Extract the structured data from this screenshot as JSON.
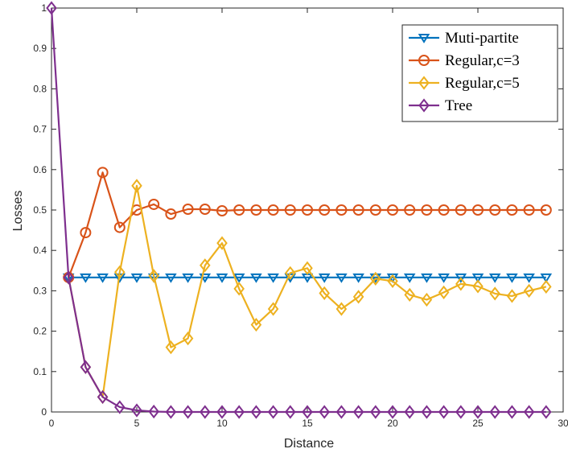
{
  "chart_data": {
    "type": "line",
    "xlabel": "Distance",
    "ylabel": "Losses",
    "xlim": [
      0,
      30
    ],
    "ylim": [
      0,
      1
    ],
    "xticks": [
      "0",
      "5",
      "10",
      "15",
      "20",
      "25",
      "30"
    ],
    "yticks": [
      "0",
      "0.1",
      "0.2",
      "0.3",
      "0.4",
      "0.5",
      "0.6",
      "0.7",
      "0.8",
      "0.9",
      "1"
    ],
    "grid": false,
    "legend_position": "top-right",
    "series": [
      {
        "name": "Muti-partite",
        "color": "#0072BD",
        "marker": "triangle-down",
        "x": [
          1,
          2,
          3,
          4,
          5,
          6,
          7,
          8,
          9,
          10,
          11,
          12,
          13,
          14,
          15,
          16,
          17,
          18,
          19,
          20,
          21,
          22,
          23,
          24,
          25,
          26,
          27,
          28,
          29
        ],
        "y": [
          0.333,
          0.333,
          0.333,
          0.333,
          0.333,
          0.333,
          0.333,
          0.333,
          0.333,
          0.333,
          0.333,
          0.333,
          0.333,
          0.333,
          0.333,
          0.333,
          0.333,
          0.333,
          0.333,
          0.333,
          0.333,
          0.333,
          0.333,
          0.333,
          0.333,
          0.333,
          0.333,
          0.333,
          0.333
        ]
      },
      {
        "name": "Regular,c=3",
        "color": "#D95319",
        "marker": "circle",
        "x": [
          1,
          2,
          3,
          4,
          5,
          6,
          7,
          8,
          9,
          10,
          11,
          12,
          13,
          14,
          15,
          16,
          17,
          18,
          19,
          20,
          21,
          22,
          23,
          24,
          25,
          26,
          27,
          28,
          29
        ],
        "y": [
          0.333,
          0.444,
          0.593,
          0.457,
          0.5,
          0.514,
          0.49,
          0.502,
          0.502,
          0.498,
          0.5,
          0.5,
          0.5,
          0.5,
          0.5,
          0.5,
          0.5,
          0.5,
          0.5,
          0.5,
          0.5,
          0.5,
          0.5,
          0.5,
          0.5,
          0.5,
          0.5,
          0.5,
          0.5
        ]
      },
      {
        "name": "Regular,c=5",
        "color": "#EDB120",
        "marker": "diamond",
        "x": [
          1,
          2,
          3,
          4,
          5,
          6,
          7,
          8,
          9,
          10,
          11,
          12,
          13,
          14,
          15,
          16,
          17,
          18,
          19,
          20,
          21,
          22,
          23,
          24,
          25,
          26,
          27,
          28,
          29
        ],
        "y": [
          0.333,
          0.111,
          0.037,
          0.346,
          0.56,
          0.337,
          0.16,
          0.182,
          0.363,
          0.418,
          0.305,
          0.216,
          0.255,
          0.344,
          0.356,
          0.294,
          0.255,
          0.285,
          0.33,
          0.324,
          0.29,
          0.278,
          0.296,
          0.317,
          0.311,
          0.293,
          0.287,
          0.3,
          0.31
        ]
      },
      {
        "name": "Tree",
        "color": "#7E2F8E",
        "marker": "diamond",
        "x": [
          0,
          1,
          2,
          3,
          4,
          5,
          6,
          7,
          8,
          9,
          10,
          11,
          12,
          13,
          14,
          15,
          16,
          17,
          18,
          19,
          20,
          21,
          22,
          23,
          24,
          25,
          26,
          27,
          28,
          29
        ],
        "y": [
          1,
          0.333,
          0.111,
          0.037,
          0.012,
          0.004,
          0.001,
          0,
          0,
          0,
          0,
          0,
          0,
          0,
          0,
          0,
          0,
          0,
          0,
          0,
          0,
          0,
          0,
          0,
          0,
          0,
          0,
          0,
          0,
          0
        ]
      }
    ]
  }
}
